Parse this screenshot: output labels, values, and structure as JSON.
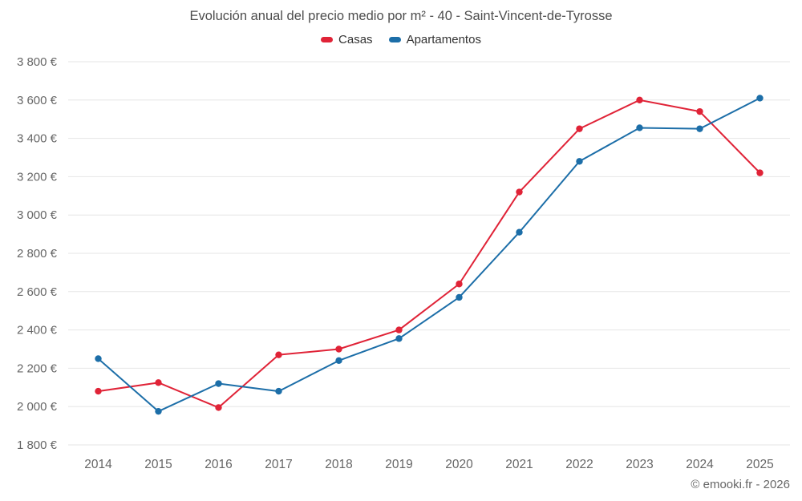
{
  "header": {
    "title": "Evolución anual del precio medio por m² - 40 - Saint-Vincent-de-Tyrosse"
  },
  "legend": {
    "items": [
      {
        "label": "Casas",
        "color": "#e02337"
      },
      {
        "label": "Apartamentos",
        "color": "#1c6ea8"
      }
    ]
  },
  "footer": {
    "credit": "© emooki.fr - 2026"
  },
  "chart_data": {
    "type": "line",
    "title": "Evolución anual del precio medio por m² - 40 - Saint-Vincent-de-Tyrosse",
    "categories": [
      "2014",
      "2015",
      "2016",
      "2017",
      "2018",
      "2019",
      "2020",
      "2021",
      "2022",
      "2023",
      "2024",
      "2025"
    ],
    "series": [
      {
        "name": "Casas",
        "color": "#e02337",
        "values": [
          2080,
          2125,
          1995,
          2270,
          2300,
          2400,
          2640,
          3120,
          3450,
          3600,
          3540,
          3220
        ]
      },
      {
        "name": "Apartamentos",
        "color": "#1c6ea8",
        "values": [
          2250,
          1975,
          2120,
          2080,
          2240,
          2355,
          2570,
          2910,
          3280,
          3455,
          3450,
          3610
        ]
      }
    ],
    "xlabel": "",
    "ylabel": "",
    "ylim": [
      1800,
      3800
    ],
    "yticks": [
      {
        "value": 1800,
        "label": "1 800 €"
      },
      {
        "value": 2000,
        "label": "2 000 €"
      },
      {
        "value": 2200,
        "label": "2 200 €"
      },
      {
        "value": 2400,
        "label": "2 400 €"
      },
      {
        "value": 2600,
        "label": "2 600 €"
      },
      {
        "value": 2800,
        "label": "2 800 €"
      },
      {
        "value": 3000,
        "label": "3 000 €"
      },
      {
        "value": 3200,
        "label": "3 200 €"
      },
      {
        "value": 3400,
        "label": "3 400 €"
      },
      {
        "value": 3600,
        "label": "3 600 €"
      },
      {
        "value": 3800,
        "label": "3 800 €"
      }
    ],
    "grid": "horizontal",
    "legend_position": "top"
  }
}
